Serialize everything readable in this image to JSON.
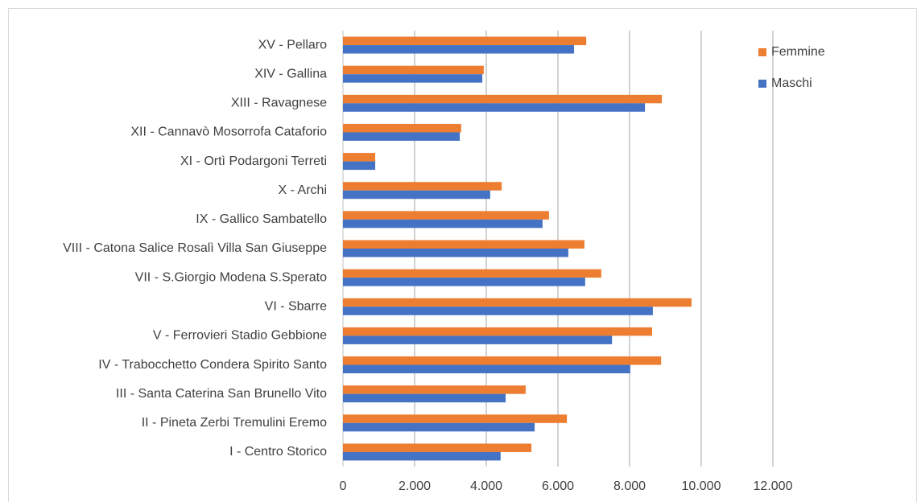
{
  "chart_data": {
    "type": "bar",
    "orientation": "horizontal",
    "categories": [
      "I - Centro Storico",
      "II - Pineta Zerbi Tremulini Eremo",
      "III - Santa Caterina San Brunello Vito",
      "IV - Trabocchetto Condera Spirito Santo",
      "V - Ferrovieri Stadio Gebbione",
      "VI - Sbarre",
      "VII - S.Giorgio Modena S.Sperato",
      "VIII - Catona Salice Rosalì Villa San Giuseppe",
      "IX - Gallico Sambatello",
      "X - Archi",
      "XI - Ortì Podargoni Terreti",
      "XII - Cannavò Mosorrofa Cataforio",
      "XIII - Ravagnese",
      "XIV - Gallina",
      "XV - Pellaro"
    ],
    "series": [
      {
        "name": "Femmine",
        "color": "#ed7d31",
        "values": [
          5260,
          6250,
          5100,
          8880,
          8630,
          9730,
          7210,
          6740,
          5750,
          4430,
          900,
          3300,
          8900,
          3930,
          6790
        ]
      },
      {
        "name": "Maschi",
        "color": "#4472c4",
        "values": [
          4400,
          5350,
          4540,
          8020,
          7510,
          8650,
          6760,
          6290,
          5570,
          4110,
          900,
          3260,
          8430,
          3890,
          6450
        ]
      }
    ],
    "xlim": [
      0,
      12000
    ],
    "xticks": [
      0,
      {
        "value": 2000,
        "label": "2.000"
      },
      {
        "value": 4000,
        "label": "4.000"
      },
      {
        "value": 6000,
        "label": "6.000"
      },
      {
        "value": 8000,
        "label": "8.000"
      },
      {
        "value": 10000,
        "label": "10.000"
      },
      {
        "value": 12000,
        "label": "12.000"
      }
    ],
    "grid": true,
    "legend": "top-right"
  }
}
